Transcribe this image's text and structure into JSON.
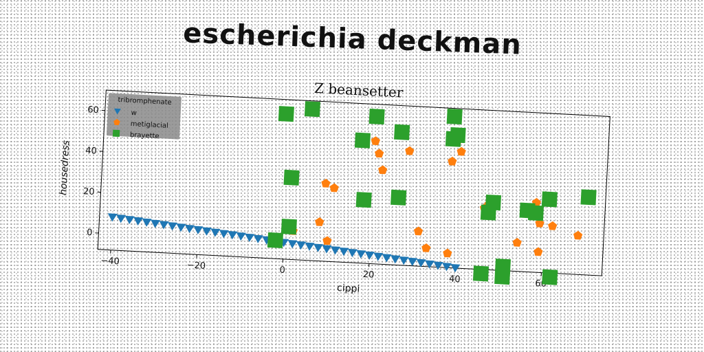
{
  "main_title": "escherichia deckman",
  "colors": {
    "w": "#1f77b4",
    "metiglacial": "#ff7f0e",
    "brayette": "#2ca02c"
  },
  "chart_data": {
    "type": "scatter",
    "title": "Z beansetter",
    "xlabel": "cippi",
    "ylabel": "housedress",
    "xlim": [
      -43,
      74
    ],
    "ylim": [
      -8,
      70
    ],
    "xticks": [
      -40,
      -20,
      0,
      20,
      40,
      60
    ],
    "yticks": [
      0,
      20,
      40,
      60
    ],
    "xtick_labels": [
      "−40",
      "−20",
      "0",
      "20",
      "40",
      "60"
    ],
    "ytick_labels": [
      "0",
      "20",
      "40",
      "60"
    ],
    "grid": false,
    "legend": {
      "title": "tribromphenate",
      "placement": "top-left"
    },
    "series": [
      {
        "name": "w",
        "marker": "triangle-down",
        "x": [
          -40,
          -38,
          -36,
          -34,
          -32,
          -30,
          -28,
          -26,
          -24,
          -22,
          -20,
          -18,
          -16,
          -14,
          -12,
          -10,
          -8,
          -6,
          -4,
          -2,
          0,
          2,
          4,
          6,
          8,
          10,
          12,
          14,
          16,
          18,
          20,
          22,
          24,
          26,
          28,
          30,
          32,
          34,
          36,
          38,
          40
        ],
        "y": [
          8,
          7.6,
          7.2,
          6.8,
          6.4,
          6,
          5.6,
          5.2,
          4.8,
          4.4,
          4,
          3.6,
          3.2,
          2.8,
          2.4,
          2,
          1.6,
          1.2,
          0.8,
          0.4,
          0,
          -0.4,
          -0.8,
          -1.2,
          -1.6,
          -2,
          -2.4,
          -2.8,
          -3.2,
          -3.6,
          -4,
          -4.4,
          -4.8,
          -5.2,
          -5.6,
          -6,
          -6.4,
          -6.8,
          -7.2,
          -7.6,
          -8
        ]
      },
      {
        "name": "metiglacial",
        "marker": "pentagon",
        "x": [
          2,
          8,
          10,
          9,
          11,
          20,
          21,
          22,
          28,
          31,
          33,
          38,
          39,
          40,
          38,
          46,
          47,
          54,
          58,
          59,
          59,
          62,
          68
        ],
        "y": [
          6,
          11,
          2,
          30,
          28,
          52,
          46,
          38,
          48,
          9,
          1,
          44,
          54,
          49,
          -1,
          22,
          24,
          6,
          26,
          16,
          2,
          15,
          11
        ],
        "labels": []
      },
      {
        "name": "brayette",
        "marker": "square",
        "x": [
          -1,
          5,
          1,
          -2,
          1,
          20,
          26,
          17,
          18,
          26,
          38,
          38,
          39,
          47,
          48,
          51,
          56,
          58,
          61,
          70,
          62,
          46,
          51
        ],
        "y": [
          63,
          66,
          32,
          1,
          8,
          64,
          57,
          52,
          23,
          25,
          66,
          55,
          57,
          20,
          25,
          -6,
          22,
          21,
          28,
          30,
          -10,
          -10,
          -11
        ]
      }
    ]
  }
}
